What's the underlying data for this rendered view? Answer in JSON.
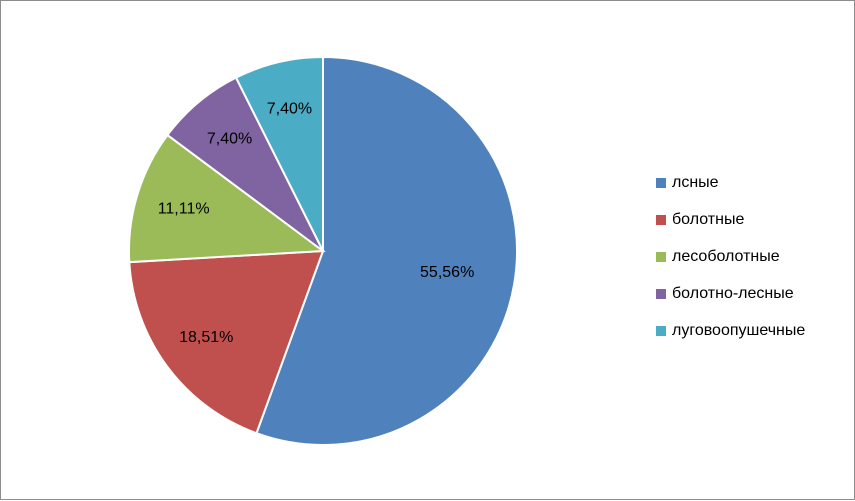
{
  "chart_data": {
    "type": "pie",
    "categories": [
      "лсные",
      "болотные",
      "лесоболотные",
      "болотно-лесные",
      "луговоопушечные"
    ],
    "values": [
      55.56,
      18.51,
      11.11,
      7.4,
      7.4
    ],
    "data_labels": [
      "55,56%",
      "18,51%",
      "11,11%",
      "7,40%",
      "7,40%"
    ],
    "colors": [
      "#4f81bd",
      "#c0504d",
      "#9bbb59",
      "#8064a2",
      "#4bacc6"
    ],
    "legend_position": "right",
    "start": "top, clockwise"
  },
  "legend": {
    "items": [
      {
        "label": "лсные",
        "color": "#4f81bd"
      },
      {
        "label": "болотные",
        "color": "#c0504d"
      },
      {
        "label": "лесоболотные",
        "color": "#9bbb59"
      },
      {
        "label": "болотно-лесные",
        "color": "#8064a2"
      },
      {
        "label": "луговоопушечные",
        "color": "#4bacc6"
      }
    ]
  }
}
